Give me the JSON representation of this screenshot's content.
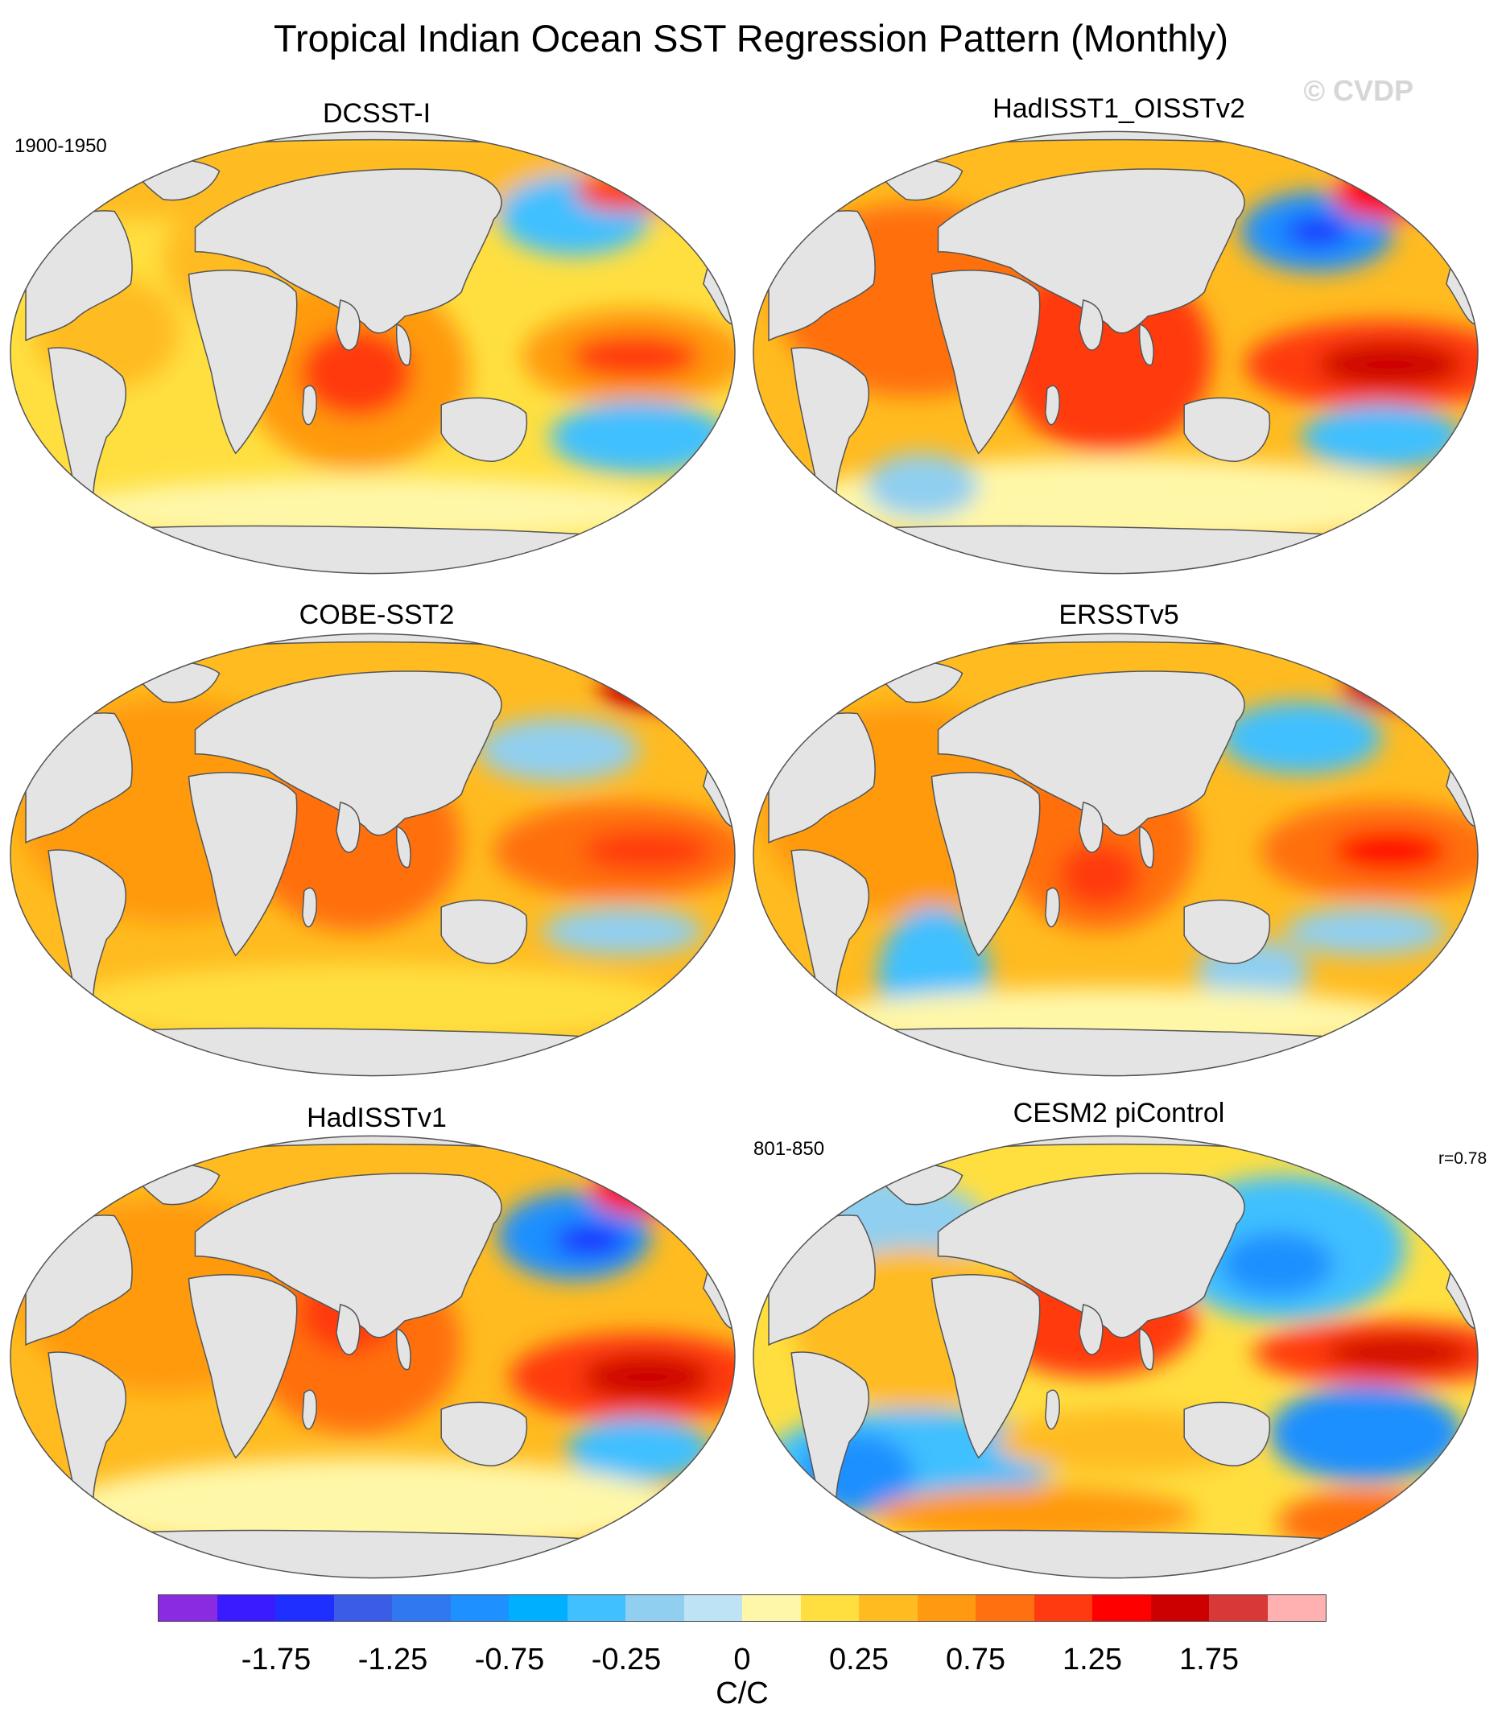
{
  "figure": {
    "title": "Tropical Indian Ocean SST Regression Pattern (Monthly)",
    "watermark": "© CVDP"
  },
  "panels": [
    {
      "title": "DCSST-I",
      "period": "1900-1950"
    },
    {
      "title": "HadISST1_OISSTv2"
    },
    {
      "title": "COBE-SST2"
    },
    {
      "title": "ERSSTv5"
    },
    {
      "title": "HadISSTv1"
    },
    {
      "title": "CESM2 piControl",
      "period": "801-850",
      "r_label": "r=0.78"
    }
  ],
  "colorbar": {
    "colors": [
      "#8a2be2",
      "#3a1aff",
      "#1f2fff",
      "#3a5ce6",
      "#2f78f0",
      "#1f90ff",
      "#00b0ff",
      "#40c0ff",
      "#90cff0",
      "#bde3f5",
      "#fff7a8",
      "#ffdf40",
      "#ffbb20",
      "#ff9a10",
      "#ff7010",
      "#ff3a10",
      "#ff0000",
      "#cc0000",
      "#d83838",
      "#ffb0b0"
    ],
    "tick_labels": [
      "-1.75",
      "-1.25",
      "-0.75",
      "-0.25",
      "0",
      "0.25",
      "0.75",
      "1.25",
      "1.75"
    ],
    "units": "C/C"
  },
  "colors": {
    "land": "#e4e4e4",
    "coast": "#555555"
  }
}
